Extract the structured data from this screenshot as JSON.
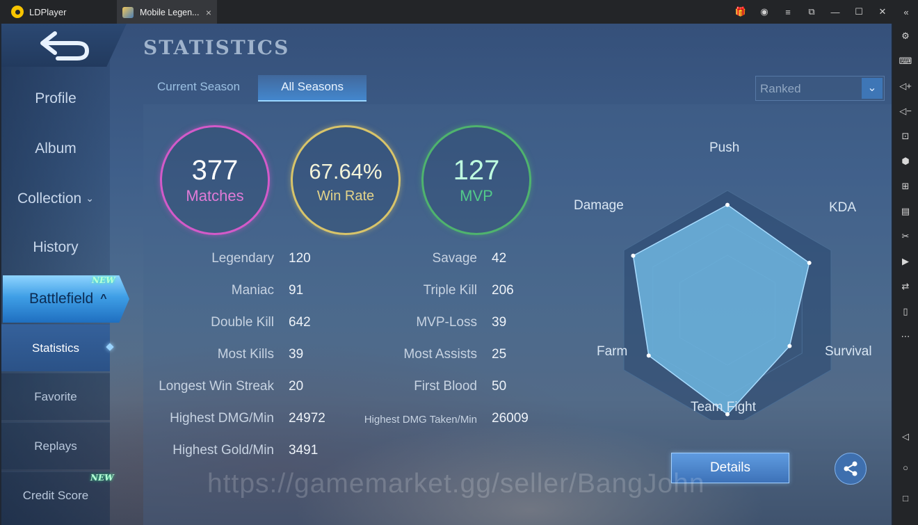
{
  "window": {
    "app_name": "LDPlayer",
    "tab_title": "Mobile Legen...",
    "tab_close": "×",
    "controls": {
      "gift": "🎁",
      "account": "◉",
      "menu": "≡",
      "pip": "⧉",
      "minimize": "—",
      "maximize": "☐",
      "close": "✕",
      "collapse": "«"
    }
  },
  "right_toolbar": [
    {
      "name": "settings-icon",
      "glyph": "⚙"
    },
    {
      "name": "keyboard-icon",
      "glyph": "⌨"
    },
    {
      "name": "volume-up-icon",
      "glyph": "◁+"
    },
    {
      "name": "volume-down-icon",
      "glyph": "◁−"
    },
    {
      "name": "screenshot-icon",
      "glyph": "⊡"
    },
    {
      "name": "install-apk-icon",
      "glyph": "⬢"
    },
    {
      "name": "add-icon",
      "glyph": "⊞"
    },
    {
      "name": "apk-icon",
      "glyph": "▤"
    },
    {
      "name": "scissors-icon",
      "glyph": "✂"
    },
    {
      "name": "record-icon",
      "glyph": "▶"
    },
    {
      "name": "sync-icon",
      "glyph": "⇄"
    },
    {
      "name": "multi-instance-icon",
      "glyph": "▯"
    },
    {
      "name": "more-icon",
      "glyph": "⋯"
    },
    {
      "name": "back-nav-icon",
      "glyph": "◁"
    },
    {
      "name": "home-nav-icon",
      "glyph": "○"
    },
    {
      "name": "recent-nav-icon",
      "glyph": "□"
    }
  ],
  "page": {
    "title": "STATISTICS",
    "tabs": [
      "Current Season",
      "All Seasons"
    ],
    "active_tab": "All Seasons",
    "mode_dropdown": {
      "value": "Ranked",
      "arrow": "⌄"
    }
  },
  "nav": {
    "items": [
      "Profile",
      "Album",
      "Collection",
      "History"
    ],
    "collection_chevron": "⌄",
    "active": "Battlefield",
    "active_chevron": "^",
    "new_badge": "NEW",
    "sub_items": [
      "Statistics",
      "Favorite",
      "Replays",
      "Credit Score"
    ],
    "active_sub": "Statistics"
  },
  "summary": [
    {
      "value": "377",
      "label": "Matches"
    },
    {
      "value": "67.64%",
      "label": "Win Rate"
    },
    {
      "value": "127",
      "label": "MVP"
    }
  ],
  "stats_left": [
    {
      "label": "Legendary",
      "value": "120"
    },
    {
      "label": "Maniac",
      "value": "91"
    },
    {
      "label": "Double Kill",
      "value": "642"
    },
    {
      "label": "Most Kills",
      "value": "39"
    },
    {
      "label": "Longest Win Streak",
      "value": "20"
    },
    {
      "label": "Highest DMG/Min",
      "value": "24972"
    },
    {
      "label": "Highest Gold/Min",
      "value": "3491"
    }
  ],
  "stats_right": [
    {
      "label": "Savage",
      "value": "42"
    },
    {
      "label": "Triple Kill",
      "value": "206"
    },
    {
      "label": "MVP-Loss",
      "value": "39"
    },
    {
      "label": "Most Assists",
      "value": "25"
    },
    {
      "label": "First Blood",
      "value": "50"
    },
    {
      "label": "Highest DMG Taken/Min",
      "value": "26009"
    }
  ],
  "radar": {
    "axes": [
      "Push",
      "KDA",
      "Survival",
      "Team Fight",
      "Farm",
      "Damage"
    ],
    "values": [
      0.88,
      0.79,
      0.6,
      0.87,
      0.76,
      0.91
    ],
    "fill_color": "#6fb6e0",
    "grid_color": "#4a6d94"
  },
  "buttons": {
    "details": "Details"
  },
  "watermark": "https://gamemarket.gg/seller/BangJohn"
}
